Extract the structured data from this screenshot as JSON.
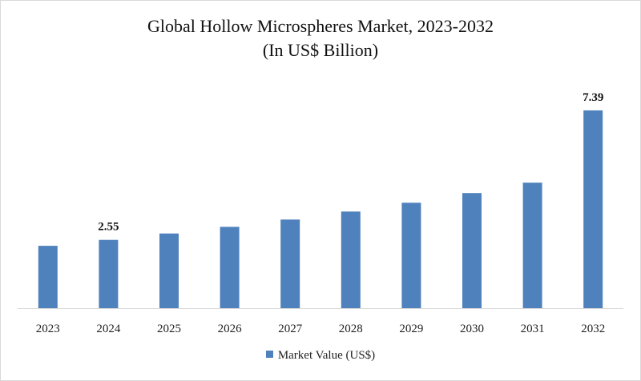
{
  "chart_data": {
    "type": "bar",
    "title": "Global Hollow Microspheres Market, 2023-2032",
    "subtitle": "(In US$ Billion)",
    "categories": [
      "2023",
      "2024",
      "2025",
      "2026",
      "2027",
      "2028",
      "2029",
      "2030",
      "2031",
      "2032"
    ],
    "series": [
      {
        "name": "Market Value (US$)",
        "color": "#4f81bd",
        "values": [
          2.33,
          2.55,
          2.79,
          3.04,
          3.31,
          3.61,
          3.94,
          4.3,
          4.69,
          7.39
        ]
      }
    ],
    "data_labels": [
      {
        "category": "2024",
        "text": "2.55"
      },
      {
        "category": "2032",
        "text": "7.39"
      }
    ],
    "xlabel": "",
    "ylabel": "",
    "ylim": [
      0,
      8
    ],
    "grid": false,
    "legend_position": "bottom"
  }
}
